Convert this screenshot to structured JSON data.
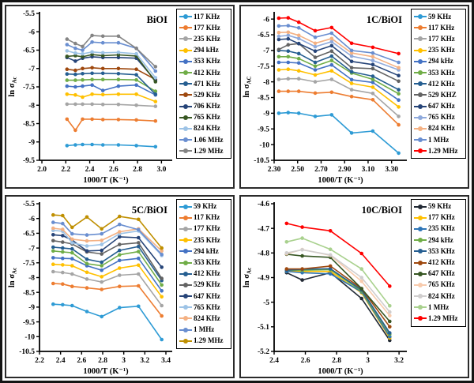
{
  "figure": {
    "background": "#ffffff",
    "frame_color": "#141414"
  },
  "chart_data": [
    {
      "type": "line",
      "title": "BiOI",
      "xlabel": "1000/T (K⁻¹)",
      "ylabel": "ln σ",
      "ylabel_sub": "Ac",
      "xlim": [
        1.98,
        3.09
      ],
      "ylim": [
        -9.5,
        -5.5
      ],
      "xtick_vals": [
        2.0,
        2.2,
        2.4,
        2.6,
        2.8,
        3.0
      ],
      "xtick_labels": [
        "2.0",
        "2.2",
        "2.4",
        "2.6",
        "2.8",
        "3.0"
      ],
      "ytick_vals": [
        -5.5,
        -6,
        -6.5,
        -7,
        -7.5,
        -8,
        -8.5,
        -9,
        -9.5
      ],
      "ytick_labels": [
        "-5.5",
        "-6",
        "-6.5",
        "-7",
        "-7.5",
        "-8",
        "-8.5",
        "-9",
        "-9.5"
      ],
      "x": [
        2.21,
        2.28,
        2.34,
        2.42,
        2.51,
        2.64,
        2.79,
        2.95
      ],
      "series": [
        {
          "name": "117 KHz",
          "color": "#2E9BD5",
          "values": [
            -9.1,
            -9.08,
            -9.07,
            -9.07,
            -9.08,
            -9.08,
            -9.1,
            -9.13
          ]
        },
        {
          "name": "177 KHz",
          "color": "#ED7D31",
          "values": [
            -8.38,
            -8.68,
            -8.38,
            -8.38,
            -8.39,
            -8.39,
            -8.4,
            -8.43
          ]
        },
        {
          "name": "235 KHz",
          "color": "#A5A5A5",
          "values": [
            -7.97,
            -7.97,
            -7.97,
            -7.97,
            -7.98,
            -7.98,
            -8.0,
            -8.03
          ]
        },
        {
          "name": "294 kHz",
          "color": "#FFC000",
          "values": [
            -7.7,
            -7.72,
            -7.78,
            -7.7,
            -7.71,
            -7.7,
            -7.7,
            -7.9
          ]
        },
        {
          "name": "353 KHz",
          "color": "#4472C4",
          "values": [
            -7.48,
            -7.5,
            -7.48,
            -7.45,
            -7.6,
            -7.48,
            -7.45,
            -7.72
          ]
        },
        {
          "name": "412 KHz",
          "color": "#70AD47",
          "values": [
            -7.32,
            -7.32,
            -7.31,
            -7.3,
            -7.3,
            -7.3,
            -7.31,
            -7.62
          ]
        },
        {
          "name": "471 KHz",
          "color": "#255E91",
          "values": [
            -7.15,
            -7.16,
            -7.14,
            -7.13,
            -7.13,
            -7.14,
            -7.17,
            -7.7
          ]
        },
        {
          "name": "529 KHz",
          "color": "#9E480E",
          "values": [
            -7.02,
            -7.05,
            -7.0,
            -6.98,
            -7.0,
            -7.0,
            -7.02,
            -7.3
          ]
        },
        {
          "name": "706 KHz",
          "color": "#264478",
          "values": [
            -6.7,
            -6.8,
            -6.72,
            -6.68,
            -6.7,
            -6.7,
            -6.72,
            -7.33
          ]
        },
        {
          "name": "765 KHz",
          "color": "#385723",
          "values": [
            -6.67,
            -6.65,
            -6.68,
            -6.62,
            -6.65,
            -6.63,
            -6.66,
            -7.36
          ]
        },
        {
          "name": "824 KHz",
          "color": "#9DC3E6",
          "values": [
            -6.52,
            -6.58,
            -6.6,
            -6.55,
            -6.57,
            -6.56,
            -6.6,
            -7.25
          ]
        },
        {
          "name": "1.06 MHz",
          "color": "#698ED0",
          "values": [
            -6.35,
            -6.45,
            -6.5,
            -6.28,
            -6.3,
            -6.3,
            -6.45,
            -7.07
          ]
        },
        {
          "name": "1.29 MHz",
          "color": "#848484",
          "values": [
            -6.2,
            -6.32,
            -6.4,
            -6.1,
            -6.12,
            -6.12,
            -6.45,
            -6.95
          ]
        }
      ]
    },
    {
      "type": "line",
      "title": "1C/BiOI",
      "xlabel": "1000/T (K⁻¹)",
      "ylabel": "ln σ",
      "ylabel_sub": "AC",
      "xlim": [
        2.3,
        3.43
      ],
      "ylim": [
        -10.5,
        -5.82
      ],
      "xtick_vals": [
        2.3,
        2.5,
        2.7,
        2.9,
        3.1,
        3.3
      ],
      "xtick_labels": [
        "2.30",
        "2.50",
        "2.70",
        "2.90",
        "3.10",
        "3.30"
      ],
      "ytick_vals": [
        -6,
        -6.5,
        -7,
        -7.5,
        -8,
        -8.5,
        -9,
        -9.5,
        -10,
        -10.5
      ],
      "ytick_labels": [
        "-6",
        "-6.5",
        "-7",
        "-7.5",
        "-8",
        "-8.5",
        "-9",
        "-9.5",
        "-10",
        "-10.5"
      ],
      "x": [
        2.34,
        2.42,
        2.51,
        2.65,
        2.79,
        2.96,
        3.14,
        3.36
      ],
      "series": [
        {
          "name": "59 KHz",
          "color": "#2E9BD5",
          "values": [
            -9.0,
            -8.98,
            -9.0,
            -9.1,
            -9.05,
            -9.63,
            -9.57,
            -10.27
          ]
        },
        {
          "name": "117 KHz",
          "color": "#ED7D31",
          "values": [
            -8.3,
            -8.3,
            -8.3,
            -8.36,
            -8.33,
            -8.47,
            -8.57,
            -9.37
          ]
        },
        {
          "name": "177 KHz",
          "color": "#A5A5A5",
          "values": [
            -7.92,
            -7.9,
            -7.9,
            -8.0,
            -7.92,
            -8.25,
            -8.37,
            -9.1
          ]
        },
        {
          "name": "235 KHz",
          "color": "#FFC000",
          "values": [
            -7.62,
            -7.6,
            -7.65,
            -7.78,
            -7.65,
            -8.05,
            -8.17,
            -8.8
          ]
        },
        {
          "name": "294 kHz",
          "color": "#4472C4",
          "values": [
            -7.38,
            -7.38,
            -7.4,
            -7.62,
            -7.46,
            -7.93,
            -8.02,
            -8.58
          ]
        },
        {
          "name": "353 KHz",
          "color": "#70AD47",
          "values": [
            -7.2,
            -7.2,
            -7.26,
            -7.5,
            -7.32,
            -7.72,
            -7.92,
            -8.38
          ]
        },
        {
          "name": "412 KHz",
          "color": "#255E91",
          "values": [
            -7.0,
            -7.02,
            -7.1,
            -7.38,
            -7.18,
            -7.68,
            -7.82,
            -8.25
          ]
        },
        {
          "name": "529 KHZ",
          "color": "#636363",
          "values": [
            -6.97,
            -6.82,
            -6.78,
            -7.22,
            -7.02,
            -7.55,
            -7.58,
            -7.98
          ]
        },
        {
          "name": "647 KHz",
          "color": "#264478",
          "values": [
            -6.65,
            -6.63,
            -6.78,
            -7.02,
            -6.85,
            -7.35,
            -7.45,
            -7.8
          ]
        },
        {
          "name": "765 KHz",
          "color": "#8FAADC",
          "values": [
            -6.55,
            -6.52,
            -6.62,
            -6.88,
            -6.72,
            -7.18,
            -7.32,
            -7.62
          ]
        },
        {
          "name": "824 KHz",
          "color": "#F4B183",
          "values": [
            -6.43,
            -6.42,
            -6.52,
            -6.77,
            -6.62,
            -7.08,
            -7.2,
            -7.55
          ]
        },
        {
          "name": "1 MHz",
          "color": "#698ED0",
          "values": [
            -6.22,
            -6.21,
            -6.28,
            -6.58,
            -6.45,
            -7.0,
            -7.08,
            -7.38
          ]
        },
        {
          "name": "1.29 MHz",
          "color": "#FF0000",
          "values": [
            -5.97,
            -5.96,
            -6.1,
            -6.37,
            -6.27,
            -6.77,
            -6.9,
            -7.1
          ]
        }
      ]
    },
    {
      "type": "line",
      "title": "5C/BiOI",
      "xlabel": "1000/T (K⁻¹)",
      "ylabel": "ln σ",
      "ylabel_sub": "Ac",
      "xlim": [
        2.2,
        3.46
      ],
      "ylim": [
        -10.5,
        -5.5
      ],
      "xtick_vals": [
        2.2,
        2.4,
        2.6,
        2.8,
        3.0,
        3.2,
        3.4
      ],
      "xtick_labels": [
        "2.2",
        "2.4",
        "2.6",
        "2.8",
        "3",
        "3.2",
        "3.4"
      ],
      "ytick_vals": [
        -5.5,
        -6,
        -6.5,
        -7,
        -7.5,
        -8,
        -8.5,
        -9,
        -9.5,
        -10,
        -10.5
      ],
      "ytick_labels": [
        "-5.5",
        "-6",
        "-6.5",
        "-7",
        "-7.5",
        "-8",
        "-8.5",
        "-9",
        "-9.5",
        "-10",
        "-10.5"
      ],
      "x": [
        2.33,
        2.42,
        2.51,
        2.65,
        2.79,
        2.96,
        3.14,
        3.36
      ],
      "series": [
        {
          "name": "59 KHz",
          "color": "#2E9BD5",
          "values": [
            -8.9,
            -8.92,
            -8.95,
            -9.15,
            -9.32,
            -9.02,
            -8.97,
            -10.1
          ]
        },
        {
          "name": "117 KHz",
          "color": "#ED7D31",
          "values": [
            -8.2,
            -8.22,
            -8.3,
            -8.35,
            -8.4,
            -8.3,
            -8.28,
            -9.3
          ]
        },
        {
          "name": "177 KHz",
          "color": "#A5A5A5",
          "values": [
            -7.8,
            -7.83,
            -7.88,
            -8.05,
            -8.15,
            -7.92,
            -7.88,
            -8.95
          ]
        },
        {
          "name": "235 KHz",
          "color": "#FFC000",
          "values": [
            -7.55,
            -7.57,
            -7.6,
            -7.82,
            -7.97,
            -7.68,
            -7.58,
            -8.65
          ]
        },
        {
          "name": "294 kHz",
          "color": "#4472C4",
          "values": [
            -7.33,
            -7.35,
            -7.36,
            -7.6,
            -7.75,
            -7.42,
            -7.35,
            -8.45
          ]
        },
        {
          "name": "353 KHz",
          "color": "#70AD47",
          "values": [
            -7.1,
            -7.13,
            -7.16,
            -7.53,
            -7.6,
            -7.23,
            -7.12,
            -8.25
          ]
        },
        {
          "name": "412 KHz",
          "color": "#255E91",
          "values": [
            -6.97,
            -7.0,
            -7.03,
            -7.38,
            -7.48,
            -7.08,
            -6.95,
            -8.1
          ]
        },
        {
          "name": "529 KHz",
          "color": "#636363",
          "values": [
            -6.75,
            -6.8,
            -6.86,
            -7.13,
            -7.2,
            -6.88,
            -6.82,
            -8.03
          ]
        },
        {
          "name": "647 KHz",
          "color": "#264478",
          "values": [
            -6.55,
            -6.58,
            -6.73,
            -7.1,
            -7.08,
            -6.62,
            -6.65,
            -7.65
          ]
        },
        {
          "name": "765 KHz",
          "color": "#9DC3E6",
          "values": [
            -6.4,
            -6.43,
            -6.82,
            -6.93,
            -6.88,
            -6.52,
            -6.42,
            -7.25
          ]
        },
        {
          "name": "824 KHz",
          "color": "#F4B183",
          "values": [
            -6.33,
            -6.37,
            -6.7,
            -6.76,
            -6.74,
            -6.45,
            -6.35,
            -7.1
          ]
        },
        {
          "name": "1 MHz",
          "color": "#698ED0",
          "values": [
            -6.13,
            -6.17,
            -6.52,
            -6.56,
            -6.52,
            -6.2,
            -6.38,
            -7.22
          ]
        },
        {
          "name": "1.29 MHz",
          "color": "#BF8F00",
          "values": [
            -5.88,
            -5.9,
            -6.3,
            -5.95,
            -6.35,
            -5.93,
            -6.03,
            -7.0
          ]
        }
      ]
    },
    {
      "type": "line",
      "title": "10C/BiOI",
      "xlabel": "1000/T (K⁻¹)",
      "ylabel": "ln σ",
      "ylabel_sub": "Ac",
      "xlim": [
        2.4,
        3.25
      ],
      "ylim": [
        -5.2,
        -4.6
      ],
      "xtick_vals": [
        2.4,
        2.6,
        2.8,
        3.0,
        3.2
      ],
      "xtick_labels": [
        "2.4",
        "2.6",
        "2.8",
        "3",
        "3.2"
      ],
      "ytick_vals": [
        -4.6,
        -4.7,
        -4.8,
        -4.9,
        -5.0,
        -5.1,
        -5.2
      ],
      "ytick_labels": [
        "-4.6",
        "-4.7",
        "-4.8",
        "-4.9",
        "-5",
        "-5.1",
        "-5.2"
      ],
      "x": [
        2.48,
        2.58,
        2.76,
        2.96,
        3.14
      ],
      "series": [
        {
          "name": "59 KHz",
          "color": "#222A35",
          "values": [
            -4.88,
            -4.91,
            -4.88,
            -4.985,
            -5.155
          ]
        },
        {
          "name": "177 KHz",
          "color": "#FFC000",
          "values": [
            -4.875,
            -4.875,
            -4.875,
            -4.962,
            -5.145
          ]
        },
        {
          "name": "235 KHz",
          "color": "#2E75B6",
          "values": [
            -4.875,
            -4.88,
            -4.885,
            -4.958,
            -5.14
          ]
        },
        {
          "name": "294 kHz",
          "color": "#70AD47",
          "values": [
            -4.87,
            -4.87,
            -4.868,
            -4.955,
            -5.13
          ]
        },
        {
          "name": "353 KHz",
          "color": "#255E91",
          "values": [
            -4.87,
            -4.866,
            -4.864,
            -4.95,
            -5.125
          ]
        },
        {
          "name": "412 KHz",
          "color": "#9E480E",
          "values": [
            -4.865,
            -4.865,
            -4.853,
            -4.945,
            -5.1
          ]
        },
        {
          "name": "647 KHz",
          "color": "#375623",
          "values": [
            -4.805,
            -4.812,
            -4.818,
            -4.945,
            -5.078
          ]
        },
        {
          "name": "765 KHz",
          "color": "#F8CBAD",
          "values": [
            -4.803,
            -4.786,
            -4.81,
            -4.915,
            -5.055
          ]
        },
        {
          "name": "824 KHz",
          "color": "#D0CECE",
          "values": [
            -4.8,
            -4.787,
            -4.808,
            -4.9,
            -5.04
          ]
        },
        {
          "name": "1 MHz",
          "color": "#A9D18E",
          "values": [
            -4.755,
            -4.74,
            -4.785,
            -4.865,
            -5.015
          ]
        },
        {
          "name": "1.29 MHz",
          "color": "#FF0000",
          "values": [
            -4.68,
            -4.695,
            -4.71,
            -4.802,
            -4.935
          ]
        }
      ]
    }
  ]
}
